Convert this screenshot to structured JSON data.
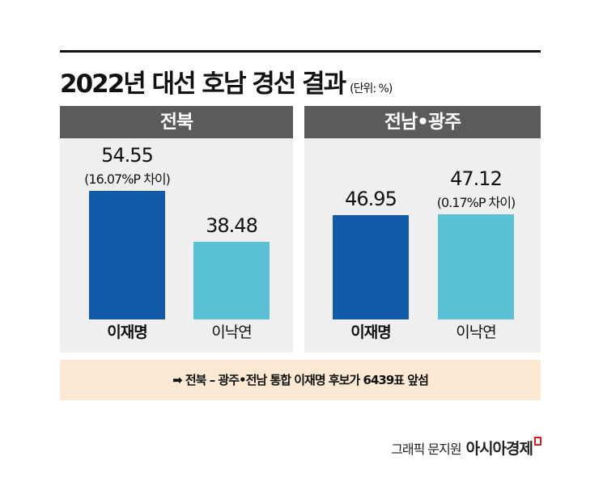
{
  "title": "2022년 대선 호남 경선 결과",
  "unit": "(단위: %)",
  "note": "➡ 전북 – 광주•전남 통합 이재명 후보가 6439표 앞섬",
  "credit": {
    "author": "그래픽 문지원",
    "brand": "아시아경제"
  },
  "colors": {
    "lee_jaemyung": "#115aa8",
    "lee_nakyon": "#5bc2d6",
    "header": "#5b5b5b",
    "panel": "#efefef",
    "note_bg": "#fce9d3"
  },
  "chart_data": [
    {
      "type": "bar",
      "title": "전북",
      "categories": [
        "이재명",
        "이낙연"
      ],
      "values": [
        54.55,
        38.48
      ],
      "labels": [
        "54.55",
        "38.48"
      ],
      "annotation": "(16.07%P 차이)",
      "ylim": [
        14.4,
        56
      ]
    },
    {
      "type": "bar",
      "title": "전남•광주",
      "categories": [
        "이재명",
        "이낙연"
      ],
      "values": [
        46.95,
        47.12
      ],
      "labels": [
        "46.95",
        "47.12"
      ],
      "annotation": "(0.17%P 차이)",
      "ylim": [
        14.4,
        56
      ]
    }
  ]
}
